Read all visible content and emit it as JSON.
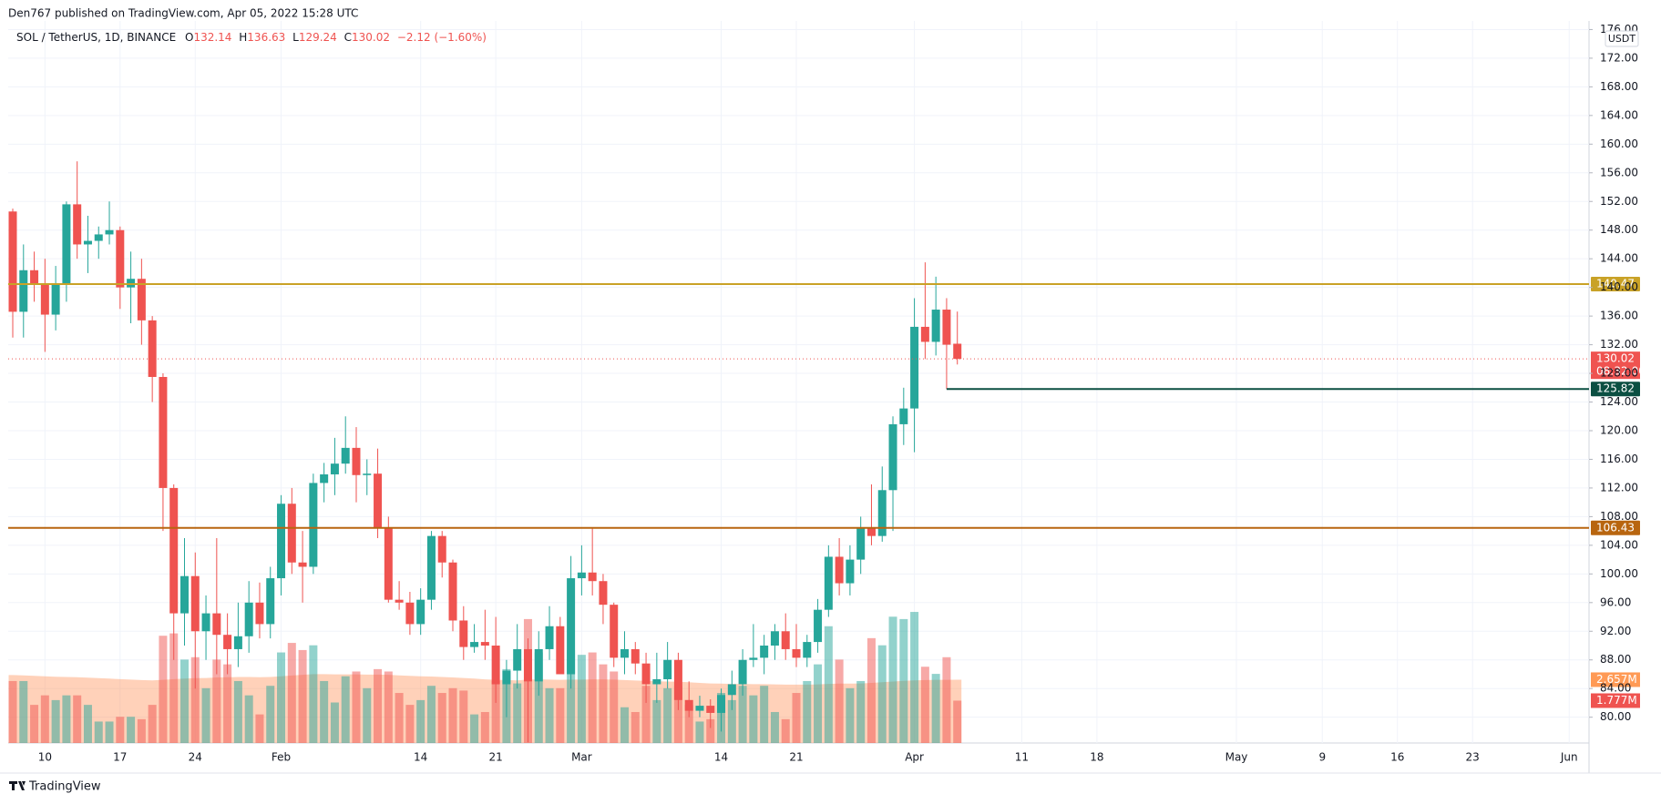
{
  "header": {
    "byline": "Den767 published on TradingView.com, Apr 05, 2022 15:28 UTC",
    "brand": "TradingView"
  },
  "chart_data": {
    "type": "candlestick",
    "title": "SOL / TetherUS, 1D, BINANCE",
    "legend": {
      "o": "O",
      "h": "H",
      "l": "L",
      "c": "C",
      "change": "−2.12 (−1.60%)"
    },
    "currency": "USDT",
    "countdown": "08:32:00",
    "x": [
      "2022-01-07",
      "2022-01-08",
      "2022-01-09",
      "2022-01-10",
      "2022-01-11",
      "2022-01-12",
      "2022-01-13",
      "2022-01-14",
      "2022-01-15",
      "2022-01-16",
      "2022-01-17",
      "2022-01-18",
      "2022-01-19",
      "2022-01-20",
      "2022-01-21",
      "2022-01-22",
      "2022-01-23",
      "2022-01-24",
      "2022-01-25",
      "2022-01-26",
      "2022-01-27",
      "2022-01-28",
      "2022-01-29",
      "2022-01-30",
      "2022-01-31",
      "2022-02-01",
      "2022-02-02",
      "2022-02-03",
      "2022-02-04",
      "2022-02-05",
      "2022-02-06",
      "2022-02-07",
      "2022-02-08",
      "2022-02-09",
      "2022-02-10",
      "2022-02-11",
      "2022-02-12",
      "2022-02-13",
      "2022-02-14",
      "2022-02-15",
      "2022-02-16",
      "2022-02-17",
      "2022-02-18",
      "2022-02-19",
      "2022-02-20",
      "2022-02-21",
      "2022-02-22",
      "2022-02-23",
      "2022-02-24",
      "2022-02-25",
      "2022-02-26",
      "2022-02-27",
      "2022-02-28",
      "2022-03-01",
      "2022-03-02",
      "2022-03-03",
      "2022-03-04",
      "2022-03-05",
      "2022-03-06",
      "2022-03-07",
      "2022-03-08",
      "2022-03-09",
      "2022-03-10",
      "2022-03-11",
      "2022-03-12",
      "2022-03-13",
      "2022-03-14",
      "2022-03-15",
      "2022-03-16",
      "2022-03-17",
      "2022-03-18",
      "2022-03-19",
      "2022-03-20",
      "2022-03-21",
      "2022-03-22",
      "2022-03-23",
      "2022-03-24",
      "2022-03-25",
      "2022-03-26",
      "2022-03-27",
      "2022-03-28",
      "2022-03-29",
      "2022-03-30",
      "2022-03-31",
      "2022-04-01",
      "2022-04-02",
      "2022-04-03",
      "2022-04-04",
      "2022-04-05"
    ],
    "open": [
      150.6,
      136.6,
      142.4,
      140.5,
      136.2,
      140.4,
      151.6,
      146,
      146.5,
      147.4,
      148,
      140,
      141.2,
      135.4,
      127.5,
      112,
      94.5,
      99.7,
      92,
      94.5,
      91.5,
      89.5,
      91.3,
      96,
      93,
      99.4,
      109.8,
      101.6,
      101,
      112.7,
      113.9,
      115.4,
      117.6,
      113.8,
      114,
      106.4,
      96.4,
      96,
      93,
      96.4,
      105.3,
      101.6,
      93.5,
      89.8,
      90.5,
      90,
      84.6,
      86.5,
      89.5,
      85,
      89.5,
      92.7,
      86,
      99.4,
      100.2,
      99,
      95.7,
      88.3,
      89.5,
      87.5,
      84.6,
      85.3,
      88,
      82.4,
      80.9,
      81.6,
      80.6,
      83.1,
      84.6,
      88,
      88.3,
      90,
      92,
      89.5,
      88.3,
      90.5,
      95,
      102.4,
      98.7,
      102,
      106.5,
      105.3,
      111.7,
      120.9,
      123.1,
      134.5,
      132.4,
      136.9,
      132.14
    ],
    "high": [
      151,
      146,
      145,
      144,
      143,
      152,
      157.6,
      150,
      148.5,
      152,
      148.5,
      145,
      144,
      136,
      128,
      112.5,
      105,
      103,
      97,
      105,
      94.5,
      96,
      99,
      98.8,
      101,
      111,
      112,
      106,
      114,
      115.5,
      119,
      122,
      120.5,
      116,
      117.5,
      108,
      99,
      97.5,
      98,
      106,
      106,
      102,
      95.5,
      93,
      95,
      94,
      88,
      93,
      91,
      92,
      95.5,
      94,
      102.5,
      104,
      106.5,
      100,
      96,
      92,
      90.5,
      89,
      89,
      90.5,
      89,
      85,
      83,
      82.5,
      84,
      86.5,
      89.5,
      93,
      91.5,
      93,
      94.5,
      93,
      91.5,
      96.5,
      104,
      105,
      104,
      108,
      112.5,
      115,
      122,
      126,
      138.5,
      143.5,
      141.5,
      138.5,
      136.63
    ],
    "low": [
      133,
      133,
      138,
      131,
      134,
      138,
      144,
      142,
      144,
      146,
      137,
      135,
      132,
      124,
      106,
      88,
      90,
      84,
      88,
      86,
      86,
      87,
      89,
      91,
      91,
      97,
      100,
      96,
      100,
      110,
      111,
      114,
      110,
      111,
      105,
      96,
      95,
      91.5,
      91.5,
      95,
      99.5,
      92,
      88,
      89,
      88,
      82,
      80,
      84,
      76.5,
      83,
      88,
      86,
      84,
      97,
      97,
      93,
      87,
      86,
      86,
      82,
      82,
      84,
      81,
      80,
      80,
      78.5,
      78,
      81,
      83,
      87,
      86,
      88,
      88,
      87,
      87,
      89,
      94,
      97,
      97,
      100,
      104,
      104.5,
      106,
      118,
      117,
      130,
      130.5,
      125.82,
      129.24
    ],
    "close": [
      136.6,
      142.4,
      140.5,
      136.2,
      140.4,
      151.6,
      146,
      146.5,
      147.4,
      148,
      140,
      141.2,
      135.4,
      127.5,
      112,
      94.5,
      99.7,
      92,
      94.5,
      91.5,
      89.5,
      91.3,
      96,
      93,
      99.4,
      109.8,
      101.6,
      101,
      112.7,
      113.9,
      115.4,
      117.6,
      113.8,
      114,
      106.4,
      96.4,
      96,
      93,
      96.4,
      105.3,
      101.6,
      93.5,
      89.8,
      90.5,
      90,
      84.6,
      86.5,
      89.5,
      85,
      89.5,
      92.7,
      86,
      99.4,
      100.2,
      99,
      95.7,
      88.3,
      89.5,
      87.5,
      84.6,
      85.3,
      88,
      82.4,
      80.9,
      81.6,
      80.6,
      83.1,
      84.6,
      88,
      88.3,
      90,
      92,
      89.5,
      88.3,
      90.5,
      95,
      102.4,
      98.7,
      102,
      106.5,
      105.3,
      111.7,
      120.9,
      123.1,
      134.5,
      132.4,
      136.9,
      132,
      130.02
    ],
    "volume": [
      2.6,
      2.6,
      1.6,
      2.0,
      1.8,
      2.0,
      2.0,
      1.6,
      0.9,
      0.9,
      1.1,
      1.1,
      1.0,
      1.6,
      4.5,
      4.6,
      3.5,
      3.6,
      2.3,
      3.5,
      3.3,
      2.6,
      2.0,
      1.2,
      2.4,
      3.8,
      4.2,
      3.9,
      4.1,
      2.6,
      1.7,
      2.8,
      3.0,
      2.3,
      3.1,
      3.0,
      2.1,
      1.6,
      1.8,
      2.4,
      2.1,
      2.3,
      2.2,
      1.2,
      1.3,
      2.6,
      3.1,
      2.5,
      5.2,
      3.8,
      2.3,
      2.3,
      3.9,
      3.7,
      3.8,
      3.3,
      3.0,
      1.5,
      1.3,
      2.4,
      1.8,
      2.3,
      2.4,
      1.6,
      0.9,
      1.0,
      2.1,
      1.8,
      2.4,
      2.0,
      2.4,
      1.3,
      1.0,
      2.1,
      2.6,
      3.3,
      4.9,
      3.5,
      2.3,
      2.6,
      4.4,
      4.1,
      5.3,
      5.2,
      5.5,
      3.2,
      2.9,
      3.6,
      1.777
    ],
    "volume_last_label": "1.777M",
    "volume_ma": [
      2.85,
      2.84,
      2.82,
      2.8,
      2.78,
      2.77,
      2.76,
      2.74,
      2.72,
      2.7,
      2.68,
      2.66,
      2.64,
      2.63,
      2.65,
      2.68,
      2.7,
      2.72,
      2.73,
      2.75,
      2.76,
      2.77,
      2.77,
      2.76,
      2.77,
      2.8,
      2.83,
      2.86,
      2.89,
      2.89,
      2.88,
      2.88,
      2.88,
      2.87,
      2.87,
      2.86,
      2.84,
      2.82,
      2.8,
      2.79,
      2.77,
      2.75,
      2.73,
      2.7,
      2.67,
      2.65,
      2.64,
      2.63,
      2.66,
      2.67,
      2.66,
      2.65,
      2.66,
      2.66,
      2.67,
      2.67,
      2.66,
      2.64,
      2.62,
      2.61,
      2.59,
      2.58,
      2.57,
      2.55,
      2.52,
      2.5,
      2.49,
      2.48,
      2.48,
      2.47,
      2.47,
      2.46,
      2.45,
      2.45,
      2.45,
      2.46,
      2.48,
      2.49,
      2.49,
      2.5,
      2.52,
      2.55,
      2.58,
      2.61,
      2.63,
      2.64,
      2.65,
      2.65,
      2.657
    ],
    "volume_ma_last_label": "2.657M",
    "colors": {
      "up": "#26a69a",
      "down": "#ef5350",
      "volume_up": "rgba(38,166,154,0.5)",
      "volume_down": "rgba(239,83,80,0.5)",
      "volume_ma": "rgba(255,140,80,0.4)",
      "volume_ma_label": "#ff9a55",
      "support": "#0b4f42"
    },
    "levels": [
      {
        "value": 140.47,
        "color": "#c9a227"
      },
      {
        "value": 106.43,
        "color": "#b8650f"
      }
    ],
    "support_index": 87,
    "ylim": [
      76.4,
      177.2
    ],
    "vlim": [
      0,
      30.3
    ],
    "yticks": [
      {
        "value": 80,
        "label": "80.00"
      },
      {
        "value": 84,
        "label": "84.00"
      },
      {
        "value": 88,
        "label": "88.00"
      },
      {
        "value": 92,
        "label": "92.00"
      },
      {
        "value": 96,
        "label": "96.00"
      },
      {
        "value": 100,
        "label": "100.00"
      },
      {
        "value": 104,
        "label": "104.00"
      },
      {
        "value": 108,
        "label": "108.00"
      },
      {
        "value": 112,
        "label": "112.00"
      },
      {
        "value": 116,
        "label": "116.00"
      },
      {
        "value": 120,
        "label": "120.00"
      },
      {
        "value": 124,
        "label": "124.00"
      },
      {
        "value": 128,
        "label": "128.00"
      },
      {
        "value": 132,
        "label": "132.00"
      },
      {
        "value": 136,
        "label": "136.00"
      },
      {
        "value": 140,
        "label": "140.00"
      },
      {
        "value": 144,
        "label": "144.00"
      },
      {
        "value": 148,
        "label": "148.00"
      },
      {
        "value": 152,
        "label": "152.00"
      },
      {
        "value": 156,
        "label": "156.00"
      },
      {
        "value": 160,
        "label": "160.00"
      },
      {
        "value": 164,
        "label": "164.00"
      },
      {
        "value": 168,
        "label": "168.00"
      },
      {
        "value": 172,
        "label": "172.00"
      },
      {
        "value": 176,
        "label": "176.00"
      }
    ],
    "xlim": [
      "2022-01-07",
      "2022-06-02"
    ],
    "xticks": [
      {
        "value": "2022-01-10",
        "label": "10"
      },
      {
        "value": "2022-01-17",
        "label": "17"
      },
      {
        "value": "2022-01-24",
        "label": "24"
      },
      {
        "value": "2022-02-01",
        "label": "Feb"
      },
      {
        "value": "2022-02-14",
        "label": "14"
      },
      {
        "value": "2022-02-21",
        "label": "21"
      },
      {
        "value": "2022-03-01",
        "label": "Mar"
      },
      {
        "value": "2022-03-14",
        "label": "14"
      },
      {
        "value": "2022-03-21",
        "label": "21"
      },
      {
        "value": "2022-04-01",
        "label": "Apr"
      },
      {
        "value": "2022-04-11",
        "label": "11"
      },
      {
        "value": "2022-04-18",
        "label": "18"
      },
      {
        "value": "2022-05-01",
        "label": "May"
      },
      {
        "value": "2022-05-09",
        "label": "9"
      },
      {
        "value": "2022-05-16",
        "label": "16"
      },
      {
        "value": "2022-05-23",
        "label": "23"
      },
      {
        "value": "2022-06-01",
        "label": "Jun"
      }
    ],
    "grid": true
  }
}
